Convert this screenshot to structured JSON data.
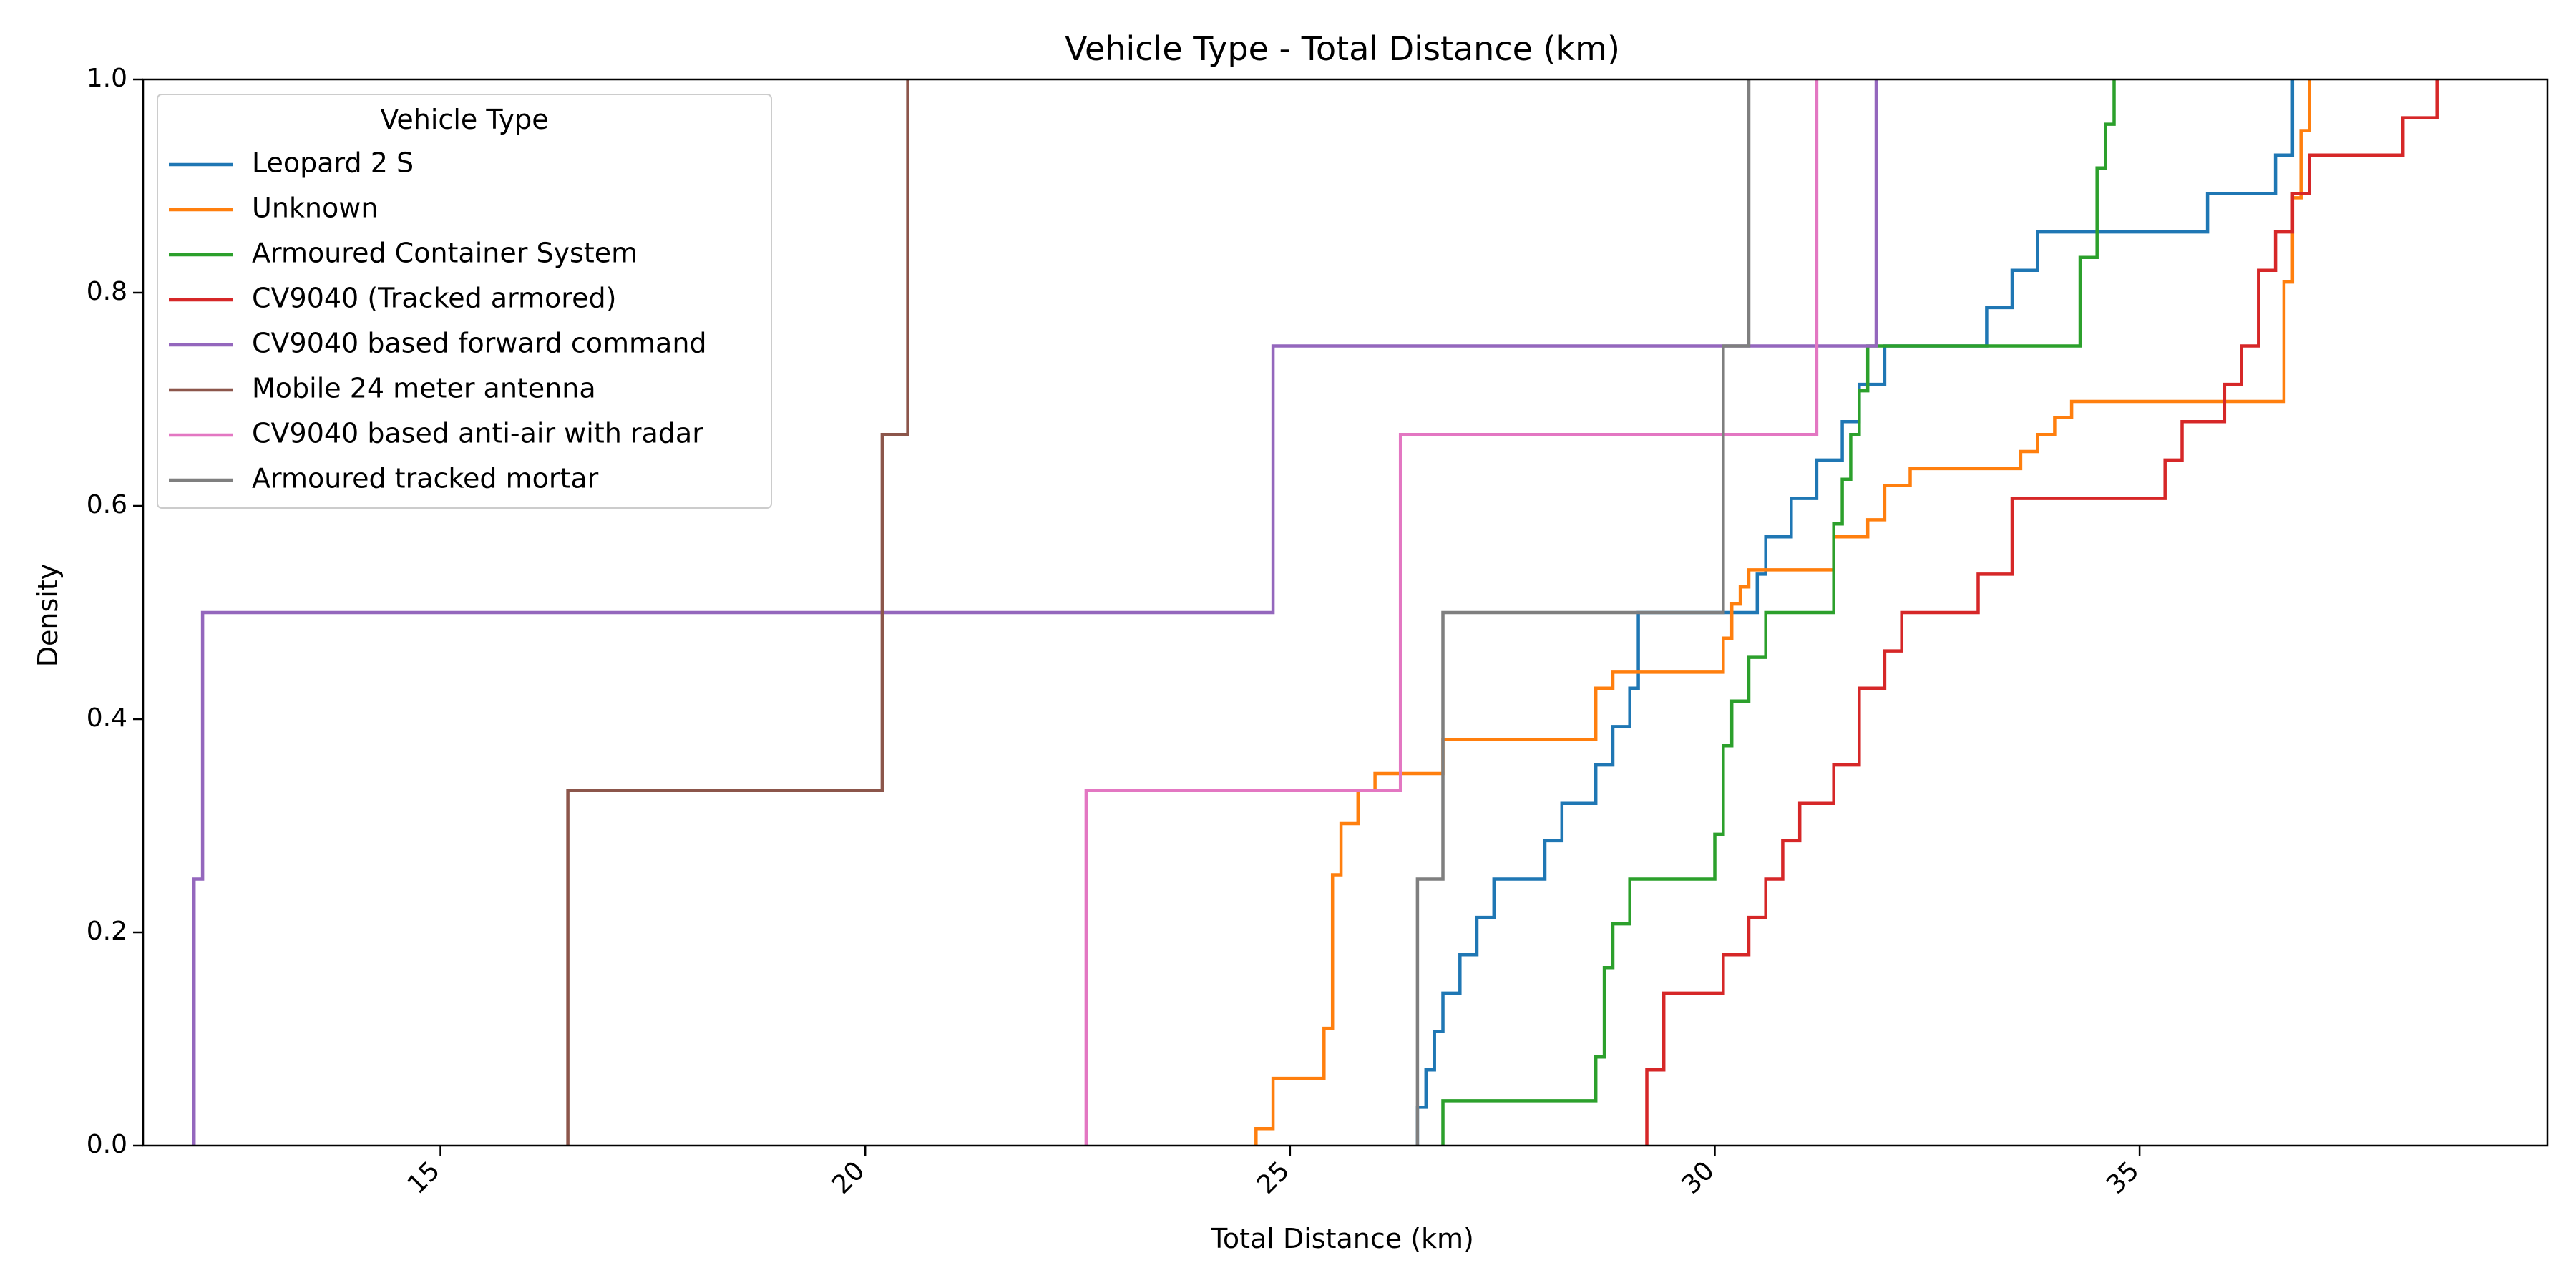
{
  "chart_data": {
    "type": "line",
    "subtype": "ecdf-step",
    "title": "Vehicle Type - Total Distance (km)",
    "xlabel": "Total Distance (km)",
    "ylabel": "Density",
    "xlim": [
      11.5,
      39.8
    ],
    "ylim": [
      0,
      1.0
    ],
    "xticks": [
      15,
      20,
      25,
      30,
      35
    ],
    "yticks": [
      0.0,
      0.2,
      0.4,
      0.6,
      0.8,
      1.0
    ],
    "xtick_rotation": 45,
    "grid": false,
    "legend": {
      "title": "Vehicle Type",
      "placement": "upper-left"
    },
    "series": [
      {
        "name": "Leopard 2 S",
        "color": "#1f77b4",
        "x": [
          26.5,
          26.6,
          26.7,
          26.8,
          27.0,
          27.2,
          27.4,
          28.0,
          28.2,
          28.6,
          28.8,
          29.0,
          29.1,
          30.5,
          30.6,
          30.9,
          31.2,
          31.5,
          31.7,
          32.0,
          33.2,
          33.5,
          33.8,
          35.8,
          36.6,
          36.8
        ],
        "y": [
          0.036,
          0.071,
          0.107,
          0.143,
          0.179,
          0.214,
          0.25,
          0.286,
          0.321,
          0.357,
          0.393,
          0.429,
          0.5,
          0.536,
          0.571,
          0.607,
          0.643,
          0.679,
          0.714,
          0.75,
          0.786,
          0.821,
          0.857,
          0.893,
          0.929,
          1.0
        ]
      },
      {
        "name": "Unknown",
        "color": "#ff7f0e",
        "x": [
          24.6,
          24.8,
          25.4,
          25.5,
          25.6,
          25.8,
          26.0,
          26.8,
          28.6,
          28.8,
          30.1,
          30.2,
          30.3,
          30.4,
          31.4,
          31.8,
          32.0,
          32.3,
          33.6,
          33.8,
          34.0,
          34.2,
          36.7,
          36.8,
          36.9,
          37.0
        ],
        "y": [
          0.016,
          0.063,
          0.11,
          0.254,
          0.302,
          0.333,
          0.349,
          0.381,
          0.429,
          0.444,
          0.476,
          0.508,
          0.524,
          0.54,
          0.571,
          0.587,
          0.619,
          0.635,
          0.651,
          0.667,
          0.683,
          0.698,
          0.81,
          0.889,
          0.952,
          1.0
        ]
      },
      {
        "name": "Armoured Container System",
        "color": "#2ca02c",
        "x": [
          26.8,
          28.6,
          28.7,
          28.8,
          29.0,
          30.0,
          30.1,
          30.2,
          30.4,
          30.6,
          31.4,
          31.5,
          31.6,
          31.7,
          31.8,
          31.9,
          34.3,
          34.5,
          34.6,
          34.7
        ],
        "y": [
          0.042,
          0.083,
          0.167,
          0.208,
          0.25,
          0.292,
          0.375,
          0.417,
          0.458,
          0.5,
          0.583,
          0.625,
          0.667,
          0.708,
          0.75,
          0.75,
          0.833,
          0.917,
          0.958,
          1.0
        ]
      },
      {
        "name": "CV9040 (Tracked armored)",
        "color": "#d62728",
        "x": [
          29.2,
          29.4,
          30.1,
          30.4,
          30.6,
          30.8,
          31.0,
          31.4,
          31.7,
          32.0,
          32.2,
          33.1,
          33.5,
          35.3,
          35.5,
          36.0,
          36.2,
          36.4,
          36.6,
          36.8,
          37.0,
          38.1,
          38.5
        ],
        "y": [
          0.071,
          0.143,
          0.179,
          0.214,
          0.25,
          0.286,
          0.321,
          0.357,
          0.429,
          0.464,
          0.5,
          0.536,
          0.607,
          0.643,
          0.679,
          0.714,
          0.75,
          0.821,
          0.857,
          0.893,
          0.929,
          0.964,
          1.0
        ]
      },
      {
        "name": "CV9040 based forward command",
        "color": "#9467bd",
        "x": [
          12.1,
          12.2,
          24.8,
          31.9
        ],
        "y": [
          0.25,
          0.5,
          0.75,
          1.0
        ]
      },
      {
        "name": "Mobile 24 meter antenna",
        "color": "#8c564b",
        "x": [
          16.5,
          20.2,
          20.5
        ],
        "y": [
          0.333,
          0.667,
          1.0
        ]
      },
      {
        "name": "CV9040 based anti-air with radar",
        "color": "#e377c2",
        "x": [
          22.6,
          26.3,
          31.2
        ],
        "y": [
          0.333,
          0.667,
          1.0
        ]
      },
      {
        "name": "Armoured tracked mortar",
        "color": "#7f7f7f",
        "x": [
          26.5,
          26.8,
          30.1,
          30.4
        ],
        "y": [
          0.25,
          0.5,
          0.75,
          1.0
        ]
      }
    ]
  }
}
